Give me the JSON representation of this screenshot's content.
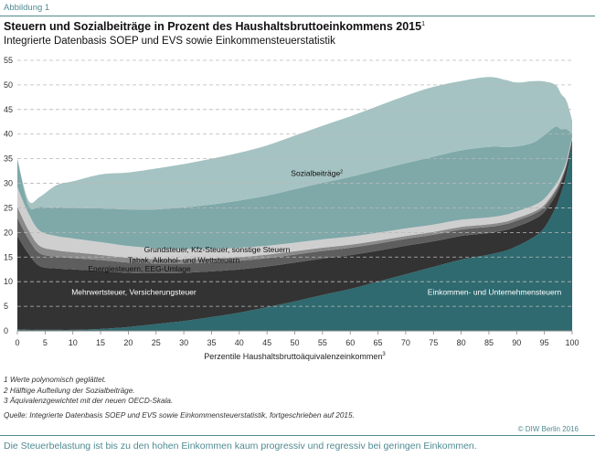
{
  "figure_label": "Abbildung 1",
  "footnotes": [
    "1  Werte polynomisch geglättet.",
    "2  Hälftige Aufteilung der Sozialbeiträge.",
    "3  Äquivalenzgewichtet mit der neuen OECD-Skala."
  ],
  "source": "Quelle: Integrierte Datenbasis SOEP und EVS sowie Einkommensteuerstatistik, fortgeschrieben auf 2015.",
  "credit": "© DIW Berlin 2016",
  "caption": "Die Steuerbelastung ist bis zu den hohen Einkommen kaum progressiv und regressiv bei geringen Einkommen.",
  "colors": {
    "einkommensteuer": "#2e6a70",
    "mehrwertsteuer": "#333333",
    "energie": "#5e5e5e",
    "tabak": "#8a8a8a",
    "grundsteuer": "#cfcfcf",
    "sozial_lower": "#7fa8a9",
    "sozial_upper": "#a5c3c2",
    "accent": "#4f8a92"
  },
  "chart_data": {
    "type": "area",
    "stacked": true,
    "title": "Steuern und Sozialbeiträge in Prozent des Haushaltsbruttoeinkommens 2015",
    "title_footnote": "1",
    "subtitle": "Integrierte Datenbasis SOEP und EVS sowie Einkommensteuerstatistik",
    "xlabel": "Perzentile Haushaltsbruttoäquivalenzeinkommen",
    "xlabel_footnote": "3",
    "xlim": [
      0,
      100
    ],
    "ylim": [
      0,
      55
    ],
    "xticks": [
      0,
      5,
      10,
      15,
      20,
      25,
      30,
      35,
      40,
      45,
      50,
      55,
      60,
      65,
      70,
      75,
      80,
      85,
      90,
      95,
      100
    ],
    "yticks": [
      0,
      5,
      10,
      15,
      20,
      25,
      30,
      35,
      40,
      45,
      50,
      55
    ],
    "grid": "horizontal-dashed",
    "x": [
      0,
      2,
      4,
      7,
      10,
      15,
      20,
      25,
      30,
      35,
      40,
      45,
      50,
      55,
      60,
      65,
      70,
      75,
      80,
      85,
      88,
      90,
      93,
      95,
      97,
      98,
      99,
      100
    ],
    "series": [
      {
        "key": "einkommensteuer",
        "name": "Einkommen- und Unternehmensteuern",
        "values": [
          0.3,
          0.2,
          0.2,
          0.2,
          0.2,
          0.4,
          0.8,
          1.4,
          2.0,
          2.8,
          3.7,
          4.8,
          6.0,
          7.3,
          8.5,
          10.0,
          11.5,
          13.0,
          14.5,
          15.5,
          16.3,
          17.2,
          19.0,
          21.0,
          25.0,
          28.0,
          32.0,
          38.0
        ]
      },
      {
        "key": "mehrwertsteuer",
        "name": "Mehrwertsteuer, Versicherungsteuer",
        "values": [
          19.0,
          15.5,
          13.0,
          12.5,
          12.3,
          11.8,
          11.0,
          10.3,
          9.8,
          9.3,
          8.8,
          8.3,
          7.9,
          7.4,
          6.9,
          6.3,
          5.8,
          5.2,
          4.8,
          4.4,
          4.2,
          4.0,
          3.6,
          3.2,
          2.5,
          2.0,
          1.5,
          0.8
        ]
      },
      {
        "key": "energie",
        "name": "Energiesteuern, EEG-Umlage",
        "values": [
          3.7,
          3.0,
          2.6,
          2.4,
          2.3,
          2.2,
          2.1,
          2.0,
          1.9,
          1.8,
          1.75,
          1.7,
          1.6,
          1.55,
          1.5,
          1.45,
          1.4,
          1.35,
          1.3,
          1.25,
          1.2,
          1.2,
          1.1,
          1.0,
          0.8,
          0.6,
          0.4,
          0.2
        ]
      },
      {
        "key": "tabak",
        "name": "Tabak, Alkohol- und Wettsteuern",
        "values": [
          2.2,
          1.8,
          1.5,
          1.3,
          1.2,
          1.05,
          0.95,
          0.9,
          0.85,
          0.8,
          0.75,
          0.7,
          0.68,
          0.65,
          0.62,
          0.6,
          0.58,
          0.56,
          0.54,
          0.52,
          0.5,
          0.5,
          0.48,
          0.45,
          0.4,
          0.3,
          0.2,
          0.1
        ]
      },
      {
        "key": "grundsteuer",
        "name": "Grundsteuer, Kfz-Steuer, sonstige Steuern",
        "values": [
          4.0,
          3.4,
          3.1,
          2.9,
          2.8,
          2.6,
          2.4,
          2.2,
          2.1,
          2.0,
          1.9,
          1.8,
          1.75,
          1.7,
          1.65,
          1.6,
          1.55,
          1.5,
          1.45,
          1.4,
          1.4,
          1.4,
          1.3,
          1.25,
          1.0,
          0.8,
          0.5,
          0.3
        ]
      },
      {
        "key": "sozial_lower",
        "name": "Sozialbeiträge",
        "values": [
          5.8,
          1.6,
          4.8,
          5.8,
          6.2,
          6.85,
          7.45,
          7.9,
          8.45,
          9.0,
          9.6,
          10.2,
          10.87,
          11.5,
          12.13,
          12.75,
          13.27,
          13.79,
          14.11,
          14.33,
          13.8,
          13.2,
          12.8,
          12.9,
          11.8,
          9.3,
          6.4,
          0.6
        ]
      },
      {
        "key": "sozial_upper",
        "name": "Sozialbeiträge",
        "values": [
          0,
          1.0,
          2.0,
          4.5,
          5.4,
          6.9,
          7.5,
          8.3,
          8.8,
          9.3,
          9.7,
          10.2,
          10.9,
          11.6,
          12.3,
          13.0,
          13.7,
          14.2,
          14.1,
          14.2,
          13.6,
          13.0,
          12.5,
          10.9,
          8.5,
          7.2,
          5.7,
          2.8
        ]
      }
    ],
    "annotations": [
      {
        "text": "Sozialbeiträge",
        "footnote": "2",
        "x": 54,
        "y": 31.5
      },
      {
        "text": "Grundsteuer, Kfz-Steuer, sonstige Steuern",
        "x": 36,
        "y": 16.0
      },
      {
        "text": "Tabak, Alkohol- und Wettsteuern",
        "x": 30,
        "y": 13.8
      },
      {
        "text": "Energiesteuern, EEG-Umlage",
        "x": 22,
        "y": 12.1
      },
      {
        "text": "Mehrwertsteuer, Versicherungsteuer",
        "x": 21,
        "y": 7.3
      },
      {
        "text": "Einkommen- und Unternehmensteuern",
        "x": 86,
        "y": 7.3
      }
    ]
  }
}
